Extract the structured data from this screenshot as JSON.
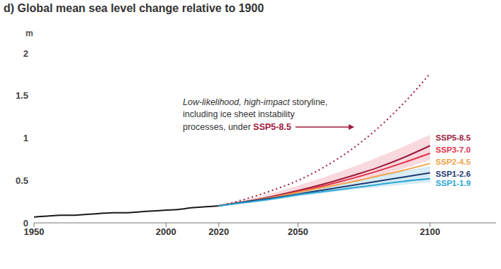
{
  "chart_data": {
    "type": "line",
    "title": "d) Global mean sea level change relative to 1900",
    "y_label": "m",
    "xlim": [
      1950,
      2125
    ],
    "xticks": [
      1950,
      2000,
      2020,
      2050,
      2100
    ],
    "ylim": [
      0,
      2
    ],
    "yticks": [
      0,
      0.5,
      1,
      1.5,
      2
    ],
    "grid": false,
    "observed": {
      "color": "#1a1a1a",
      "x": [
        1950,
        1955,
        1960,
        1965,
        1970,
        1975,
        1980,
        1985,
        1990,
        1995,
        2000,
        2005,
        2010,
        2015,
        2020
      ],
      "values": [
        0.07,
        0.08,
        0.09,
        0.09,
        0.1,
        0.11,
        0.12,
        0.12,
        0.13,
        0.14,
        0.15,
        0.16,
        0.18,
        0.19,
        0.2
      ]
    },
    "storyline": {
      "color": "#a01a3c",
      "line_style": "dotted",
      "x": [
        2020,
        2030,
        2040,
        2050,
        2060,
        2070,
        2080,
        2090,
        2100
      ],
      "values": [
        0.2,
        0.28,
        0.38,
        0.5,
        0.66,
        0.86,
        1.11,
        1.41,
        1.76
      ],
      "annotation": [
        {
          "italic": "Low-likelihood, high-impact",
          "text": " storyline,"
        },
        {
          "text": "including ice sheet instability"
        },
        {
          "text": "processes, under ",
          "bold": "SSP5-8.5"
        }
      ]
    },
    "series": [
      {
        "name": "SSP5-8.5",
        "color": "#9b1c3a",
        "fill": "#f6c9d0",
        "x": [
          2020,
          2030,
          2040,
          2050,
          2060,
          2070,
          2080,
          2090,
          2100
        ],
        "values": [
          0.2,
          0.25,
          0.31,
          0.38,
          0.46,
          0.55,
          0.65,
          0.77,
          0.91
        ],
        "low": [
          0.2,
          0.23,
          0.28,
          0.33,
          0.4,
          0.47,
          0.55,
          0.64,
          0.74
        ],
        "high": [
          0.2,
          0.27,
          0.35,
          0.44,
          0.54,
          0.65,
          0.77,
          0.9,
          1.04
        ]
      },
      {
        "name": "SSP3-7.0",
        "color": "#e0304a",
        "x": [
          2020,
          2030,
          2040,
          2050,
          2060,
          2070,
          2080,
          2090,
          2100
        ],
        "values": [
          0.2,
          0.25,
          0.3,
          0.37,
          0.44,
          0.52,
          0.61,
          0.71,
          0.82
        ]
      },
      {
        "name": "SSP2-4.5",
        "color": "#f0a24a",
        "x": [
          2020,
          2030,
          2040,
          2050,
          2060,
          2070,
          2080,
          2090,
          2100
        ],
        "values": [
          0.2,
          0.25,
          0.3,
          0.36,
          0.42,
          0.48,
          0.55,
          0.62,
          0.7
        ]
      },
      {
        "name": "SSP1-2.6",
        "color": "#1f3a70",
        "fill": "#c4e4f2",
        "x": [
          2020,
          2030,
          2040,
          2050,
          2060,
          2070,
          2080,
          2090,
          2100
        ],
        "values": [
          0.2,
          0.25,
          0.29,
          0.34,
          0.39,
          0.44,
          0.49,
          0.54,
          0.59
        ],
        "low": [
          0.2,
          0.23,
          0.27,
          0.31,
          0.35,
          0.39,
          0.42,
          0.45,
          0.48
        ],
        "high": [
          0.2,
          0.26,
          0.31,
          0.37,
          0.43,
          0.49,
          0.55,
          0.61,
          0.67
        ]
      },
      {
        "name": "SSP1-1.9",
        "color": "#2aa6d5",
        "x": [
          2020,
          2030,
          2040,
          2050,
          2060,
          2070,
          2080,
          2090,
          2100
        ],
        "values": [
          0.2,
          0.24,
          0.28,
          0.33,
          0.37,
          0.41,
          0.45,
          0.49,
          0.52
        ]
      }
    ]
  }
}
